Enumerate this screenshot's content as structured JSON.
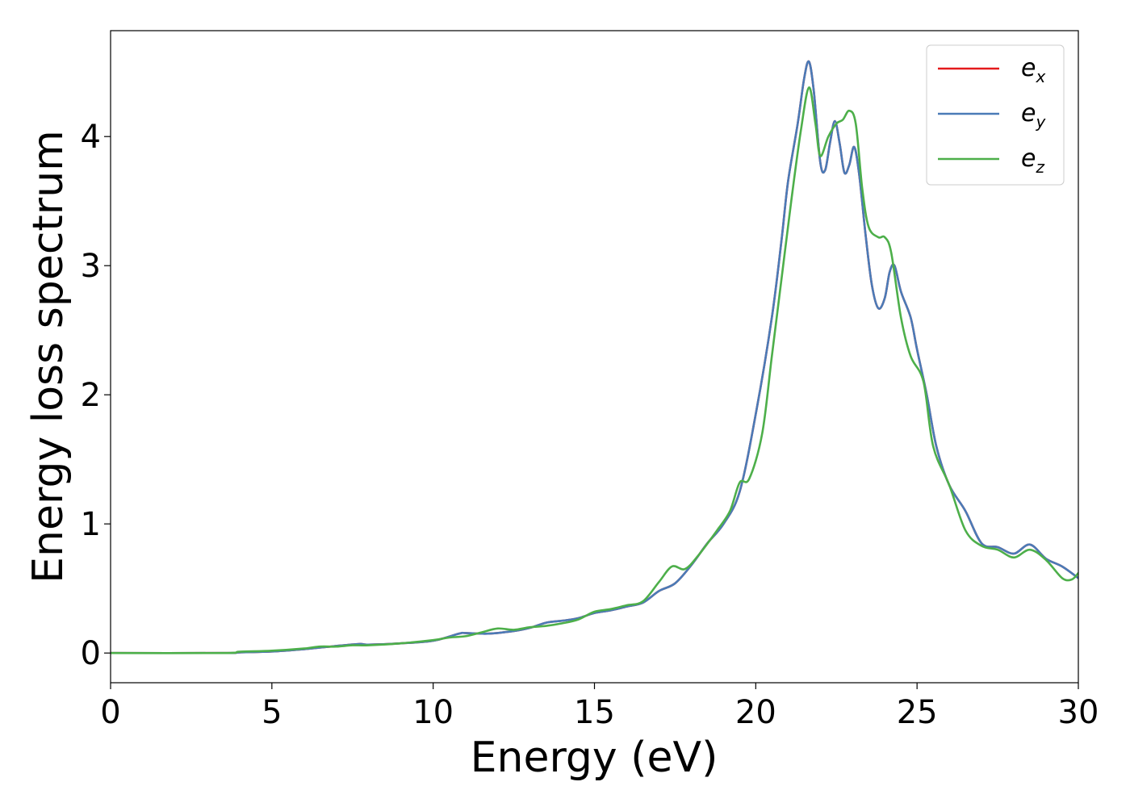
{
  "chart_data": {
    "type": "line",
    "xlabel": "Energy (eV)",
    "ylabel": "Energy loss spectrum",
    "xlim": [
      0,
      30
    ],
    "ylim": [
      -0.23,
      4.82
    ],
    "x_ticks": [
      0,
      5,
      10,
      15,
      20,
      25,
      30
    ],
    "y_ticks": [
      0,
      1,
      2,
      3,
      4
    ],
    "grid": false,
    "legend_placement": "top-right",
    "series": [
      {
        "name": "x",
        "legend_base": "e",
        "legend_sub": "x",
        "color": "#e41a1c",
        "points": [
          [
            0,
            0
          ],
          [
            3.5,
            0
          ],
          [
            4,
            0.005
          ],
          [
            5,
            0.012
          ],
          [
            6,
            0.03
          ],
          [
            7,
            0.055
          ],
          [
            7.7,
            0.07
          ],
          [
            8,
            0.065
          ],
          [
            9,
            0.075
          ],
          [
            10,
            0.095
          ],
          [
            10.8,
            0.15
          ],
          [
            11,
            0.155
          ],
          [
            11.7,
            0.15
          ],
          [
            12.5,
            0.17
          ],
          [
            13,
            0.195
          ],
          [
            13.5,
            0.235
          ],
          [
            14,
            0.25
          ],
          [
            14.5,
            0.27
          ],
          [
            15,
            0.31
          ],
          [
            15.5,
            0.33
          ],
          [
            16,
            0.36
          ],
          [
            16.5,
            0.39
          ],
          [
            17,
            0.48
          ],
          [
            17.5,
            0.54
          ],
          [
            18,
            0.68
          ],
          [
            18.5,
            0.85
          ],
          [
            19,
            1.0
          ],
          [
            19.5,
            1.25
          ],
          [
            20,
            1.85
          ],
          [
            20.5,
            2.6
          ],
          [
            20.8,
            3.2
          ],
          [
            21.0,
            3.65
          ],
          [
            21.3,
            4.1
          ],
          [
            21.5,
            4.45
          ],
          [
            21.65,
            4.58
          ],
          [
            21.8,
            4.35
          ],
          [
            22.0,
            3.8
          ],
          [
            22.15,
            3.74
          ],
          [
            22.3,
            3.95
          ],
          [
            22.45,
            4.12
          ],
          [
            22.6,
            3.95
          ],
          [
            22.75,
            3.72
          ],
          [
            22.9,
            3.78
          ],
          [
            23.05,
            3.92
          ],
          [
            23.2,
            3.72
          ],
          [
            23.4,
            3.25
          ],
          [
            23.6,
            2.85
          ],
          [
            23.8,
            2.67
          ],
          [
            24.0,
            2.75
          ],
          [
            24.15,
            2.95
          ],
          [
            24.3,
            3.0
          ],
          [
            24.5,
            2.8
          ],
          [
            24.8,
            2.6
          ],
          [
            25.0,
            2.35
          ],
          [
            25.3,
            2.0
          ],
          [
            25.6,
            1.6
          ],
          [
            26.0,
            1.3
          ],
          [
            26.5,
            1.1
          ],
          [
            27.0,
            0.85
          ],
          [
            27.5,
            0.82
          ],
          [
            28.0,
            0.77
          ],
          [
            28.5,
            0.84
          ],
          [
            29.0,
            0.73
          ],
          [
            29.5,
            0.67
          ],
          [
            30,
            0.58
          ]
        ]
      },
      {
        "name": "y",
        "legend_base": "e",
        "legend_sub": "y",
        "color": "#4a7bb7",
        "points": [
          [
            0,
            0
          ],
          [
            3.5,
            0
          ],
          [
            4,
            0.005
          ],
          [
            5,
            0.012
          ],
          [
            6,
            0.03
          ],
          [
            7,
            0.055
          ],
          [
            7.7,
            0.07
          ],
          [
            8,
            0.065
          ],
          [
            9,
            0.075
          ],
          [
            10,
            0.095
          ],
          [
            10.8,
            0.15
          ],
          [
            11,
            0.155
          ],
          [
            11.7,
            0.15
          ],
          [
            12.5,
            0.17
          ],
          [
            13,
            0.195
          ],
          [
            13.5,
            0.235
          ],
          [
            14,
            0.25
          ],
          [
            14.5,
            0.27
          ],
          [
            15,
            0.31
          ],
          [
            15.5,
            0.33
          ],
          [
            16,
            0.36
          ],
          [
            16.5,
            0.39
          ],
          [
            17,
            0.48
          ],
          [
            17.5,
            0.54
          ],
          [
            18,
            0.68
          ],
          [
            18.5,
            0.85
          ],
          [
            19,
            1.0
          ],
          [
            19.5,
            1.25
          ],
          [
            20,
            1.85
          ],
          [
            20.5,
            2.6
          ],
          [
            20.8,
            3.2
          ],
          [
            21.0,
            3.65
          ],
          [
            21.3,
            4.1
          ],
          [
            21.5,
            4.45
          ],
          [
            21.65,
            4.58
          ],
          [
            21.8,
            4.35
          ],
          [
            22.0,
            3.8
          ],
          [
            22.15,
            3.74
          ],
          [
            22.3,
            3.95
          ],
          [
            22.45,
            4.12
          ],
          [
            22.6,
            3.95
          ],
          [
            22.75,
            3.72
          ],
          [
            22.9,
            3.78
          ],
          [
            23.05,
            3.92
          ],
          [
            23.2,
            3.72
          ],
          [
            23.4,
            3.25
          ],
          [
            23.6,
            2.85
          ],
          [
            23.8,
            2.67
          ],
          [
            24.0,
            2.75
          ],
          [
            24.15,
            2.95
          ],
          [
            24.3,
            3.0
          ],
          [
            24.5,
            2.8
          ],
          [
            24.8,
            2.6
          ],
          [
            25.0,
            2.35
          ],
          [
            25.3,
            2.0
          ],
          [
            25.6,
            1.6
          ],
          [
            26.0,
            1.3
          ],
          [
            26.5,
            1.1
          ],
          [
            27.0,
            0.85
          ],
          [
            27.5,
            0.82
          ],
          [
            28.0,
            0.77
          ],
          [
            28.5,
            0.84
          ],
          [
            29.0,
            0.73
          ],
          [
            29.5,
            0.67
          ],
          [
            30,
            0.58
          ]
        ]
      },
      {
        "name": "z",
        "legend_base": "e",
        "legend_sub": "z",
        "color": "#4daf4a",
        "points": [
          [
            0,
            0
          ],
          [
            3.5,
            0
          ],
          [
            4,
            0.01
          ],
          [
            5,
            0.018
          ],
          [
            6,
            0.035
          ],
          [
            6.5,
            0.05
          ],
          [
            7,
            0.05
          ],
          [
            7.5,
            0.06
          ],
          [
            8,
            0.06
          ],
          [
            9,
            0.075
          ],
          [
            10,
            0.1
          ],
          [
            10.5,
            0.12
          ],
          [
            11,
            0.13
          ],
          [
            11.5,
            0.16
          ],
          [
            12,
            0.19
          ],
          [
            12.5,
            0.18
          ],
          [
            13,
            0.2
          ],
          [
            13.5,
            0.21
          ],
          [
            14,
            0.23
          ],
          [
            14.5,
            0.26
          ],
          [
            15,
            0.32
          ],
          [
            15.5,
            0.34
          ],
          [
            16,
            0.37
          ],
          [
            16.5,
            0.4
          ],
          [
            17,
            0.55
          ],
          [
            17.4,
            0.67
          ],
          [
            17.8,
            0.65
          ],
          [
            18.2,
            0.75
          ],
          [
            18.8,
            0.95
          ],
          [
            19.2,
            1.1
          ],
          [
            19.5,
            1.32
          ],
          [
            19.8,
            1.35
          ],
          [
            20.2,
            1.7
          ],
          [
            20.5,
            2.3
          ],
          [
            20.8,
            2.9
          ],
          [
            21.1,
            3.5
          ],
          [
            21.4,
            4.05
          ],
          [
            21.65,
            4.38
          ],
          [
            21.85,
            4.1
          ],
          [
            22.0,
            3.85
          ],
          [
            22.25,
            4.0
          ],
          [
            22.5,
            4.1
          ],
          [
            22.7,
            4.13
          ],
          [
            22.9,
            4.2
          ],
          [
            23.1,
            4.1
          ],
          [
            23.3,
            3.6
          ],
          [
            23.5,
            3.3
          ],
          [
            23.8,
            3.22
          ],
          [
            24.0,
            3.22
          ],
          [
            24.2,
            3.1
          ],
          [
            24.5,
            2.6
          ],
          [
            24.8,
            2.3
          ],
          [
            25.2,
            2.1
          ],
          [
            25.5,
            1.6
          ],
          [
            26.0,
            1.3
          ],
          [
            26.5,
            0.95
          ],
          [
            27.0,
            0.83
          ],
          [
            27.5,
            0.8
          ],
          [
            28.0,
            0.74
          ],
          [
            28.5,
            0.8
          ],
          [
            29.0,
            0.72
          ],
          [
            29.5,
            0.58
          ],
          [
            29.8,
            0.57
          ],
          [
            30,
            0.62
          ]
        ]
      }
    ]
  }
}
